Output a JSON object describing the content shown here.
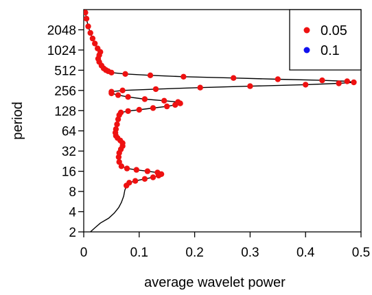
{
  "chart_data": {
    "type": "scatter",
    "title": "",
    "xlabel": "average wavelet power",
    "ylabel": "period",
    "xlim": [
      0,
      0.5
    ],
    "ylim": [
      2,
      4096
    ],
    "y_scale": "log2",
    "x_ticks": [
      "0",
      "0.1",
      "0.2",
      "0.3",
      "0.4",
      "0.5"
    ],
    "x_tick_values": [
      0,
      0.1,
      0.2,
      0.3,
      0.4,
      0.5
    ],
    "y_ticks": [
      "2",
      "4",
      "8",
      "16",
      "32",
      "64",
      "128",
      "256",
      "512",
      "1024",
      "2048"
    ],
    "y_tick_values": [
      2,
      4,
      8,
      16,
      32,
      64,
      128,
      256,
      512,
      1024,
      2048
    ],
    "legend": {
      "position": "top-right",
      "entries": [
        {
          "label": "0.05",
          "color": "#ee1111"
        },
        {
          "label": "0.1",
          "color": "#1111ee"
        }
      ]
    },
    "curve_color": "#000000",
    "curve": [
      [
        0.012,
        2.0
      ],
      [
        0.02,
        2.3
      ],
      [
        0.03,
        2.7
      ],
      [
        0.045,
        3.2
      ],
      [
        0.055,
        3.8
      ],
      [
        0.063,
        4.6
      ],
      [
        0.068,
        5.5
      ],
      [
        0.072,
        6.8
      ],
      [
        0.074,
        8.3
      ],
      [
        0.077,
        9.8
      ],
      [
        0.082,
        10.8
      ],
      [
        0.093,
        11.5
      ],
      [
        0.11,
        12.3
      ],
      [
        0.125,
        13.0
      ],
      [
        0.135,
        13.8
      ],
      [
        0.14,
        14.5
      ],
      [
        0.133,
        15.3
      ],
      [
        0.115,
        16.0
      ],
      [
        0.095,
        16.8
      ],
      [
        0.078,
        17.6
      ],
      [
        0.068,
        19
      ],
      [
        0.064,
        22
      ],
      [
        0.063,
        26
      ],
      [
        0.064,
        30
      ],
      [
        0.067,
        34
      ],
      [
        0.07,
        38
      ],
      [
        0.07,
        42
      ],
      [
        0.066,
        46
      ],
      [
        0.061,
        50
      ],
      [
        0.058,
        54
      ],
      [
        0.057,
        60
      ],
      [
        0.058,
        68
      ],
      [
        0.06,
        80
      ],
      [
        0.062,
        95
      ],
      [
        0.064,
        110
      ],
      [
        0.067,
        120
      ],
      [
        0.08,
        126
      ],
      [
        0.1,
        132
      ],
      [
        0.125,
        140
      ],
      [
        0.15,
        148
      ],
      [
        0.165,
        156
      ],
      [
        0.174,
        164
      ],
      [
        0.17,
        172
      ],
      [
        0.145,
        180
      ],
      [
        0.11,
        190
      ],
      [
        0.08,
        205
      ],
      [
        0.062,
        218
      ],
      [
        0.05,
        232
      ],
      [
        0.05,
        245
      ],
      [
        0.07,
        256
      ],
      [
        0.13,
        268
      ],
      [
        0.21,
        282
      ],
      [
        0.3,
        296
      ],
      [
        0.4,
        312
      ],
      [
        0.46,
        326
      ],
      [
        0.487,
        338
      ],
      [
        0.475,
        350
      ],
      [
        0.43,
        362
      ],
      [
        0.35,
        376
      ],
      [
        0.27,
        392
      ],
      [
        0.18,
        410
      ],
      [
        0.12,
        430
      ],
      [
        0.075,
        450
      ],
      [
        0.05,
        472
      ],
      [
        0.044,
        495
      ],
      [
        0.04,
        515
      ],
      [
        0.036,
        545
      ],
      [
        0.032,
        600
      ],
      [
        0.028,
        680
      ],
      [
        0.026,
        760
      ],
      [
        0.028,
        860
      ],
      [
        0.03,
        960
      ],
      [
        0.025,
        1080
      ],
      [
        0.02,
        1280
      ],
      [
        0.016,
        1520
      ],
      [
        0.012,
        1840
      ],
      [
        0.008,
        2300
      ],
      [
        0.005,
        3000
      ],
      [
        0.003,
        3700
      ]
    ],
    "significant_points": [
      [
        0.077,
        9.8
      ],
      [
        0.082,
        10.8
      ],
      [
        0.093,
        11.5
      ],
      [
        0.11,
        12.3
      ],
      [
        0.125,
        13.0
      ],
      [
        0.135,
        13.8
      ],
      [
        0.14,
        14.5
      ],
      [
        0.133,
        15.3
      ],
      [
        0.115,
        16.0
      ],
      [
        0.095,
        16.8
      ],
      [
        0.078,
        17.6
      ],
      [
        0.068,
        19
      ],
      [
        0.064,
        22
      ],
      [
        0.063,
        26
      ],
      [
        0.064,
        30
      ],
      [
        0.067,
        34
      ],
      [
        0.07,
        38
      ],
      [
        0.07,
        42
      ],
      [
        0.066,
        46
      ],
      [
        0.061,
        50
      ],
      [
        0.058,
        54
      ],
      [
        0.057,
        60
      ],
      [
        0.058,
        68
      ],
      [
        0.06,
        80
      ],
      [
        0.062,
        95
      ],
      [
        0.064,
        110
      ],
      [
        0.067,
        120
      ],
      [
        0.08,
        126
      ],
      [
        0.1,
        132
      ],
      [
        0.125,
        140
      ],
      [
        0.15,
        148
      ],
      [
        0.165,
        156
      ],
      [
        0.174,
        164
      ],
      [
        0.17,
        172
      ],
      [
        0.145,
        180
      ],
      [
        0.11,
        190
      ],
      [
        0.08,
        205
      ],
      [
        0.062,
        218
      ],
      [
        0.05,
        232
      ],
      [
        0.05,
        245
      ],
      [
        0.07,
        256
      ],
      [
        0.13,
        268
      ],
      [
        0.21,
        282
      ],
      [
        0.3,
        296
      ],
      [
        0.4,
        312
      ],
      [
        0.46,
        326
      ],
      [
        0.487,
        338
      ],
      [
        0.475,
        350
      ],
      [
        0.43,
        362
      ],
      [
        0.35,
        376
      ],
      [
        0.27,
        392
      ],
      [
        0.18,
        410
      ],
      [
        0.12,
        430
      ],
      [
        0.075,
        450
      ],
      [
        0.05,
        472
      ],
      [
        0.044,
        495
      ],
      [
        0.04,
        515
      ],
      [
        0.036,
        545
      ],
      [
        0.032,
        600
      ],
      [
        0.028,
        680
      ],
      [
        0.026,
        760
      ],
      [
        0.028,
        860
      ],
      [
        0.03,
        960
      ],
      [
        0.025,
        1080
      ],
      [
        0.02,
        1280
      ],
      [
        0.016,
        1520
      ],
      [
        0.012,
        1840
      ],
      [
        0.008,
        2300
      ],
      [
        0.005,
        3000
      ],
      [
        0.003,
        3700
      ]
    ],
    "significant_level": "0.05"
  }
}
